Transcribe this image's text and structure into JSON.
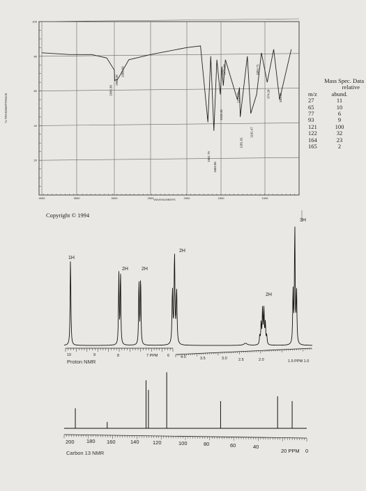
{
  "ir": {
    "ylabel": "% TRANSMITTANCE",
    "xlabel": "WAVENUMBERS",
    "yticks": [
      "100",
      "80",
      "60",
      "40",
      "20"
    ],
    "xticks": [
      "4000",
      "3500",
      "3000",
      "2500",
      "2000",
      "1500",
      "1000"
    ],
    "copyright": "Copyright © 1994",
    "peak_labels": [
      "2995.38",
      "2950.39",
      "2909.09",
      "1691.79",
      "1603.85",
      "1510.45",
      "1473.88",
      "1313.69",
      "1281.01",
      "1161.47",
      "1094.71",
      "974.18",
      "833.35"
    ]
  },
  "mass_spec": {
    "title": "Mass Spec. Data",
    "sub": "relative",
    "col1": "m/z",
    "col2": "abund.",
    "rows": [
      {
        "mz": "27",
        "abund": "11"
      },
      {
        "mz": "65",
        "abund": "10"
      },
      {
        "mz": "77",
        "abund": "6"
      },
      {
        "mz": "93",
        "abund": "9"
      },
      {
        "mz": "121",
        "abund": "100"
      },
      {
        "mz": "122",
        "abund": "32"
      },
      {
        "mz": "164",
        "abund": "23"
      },
      {
        "mz": "165",
        "abund": "2"
      }
    ]
  },
  "hnmr": {
    "label": "Proton NMR",
    "ppm_label": "PPM",
    "ticks": [
      "10",
      "9",
      "8",
      "7 PPM",
      "6",
      "4.0",
      "3.5",
      "3.0",
      "2.5",
      "2.0",
      "1.5 PPM 1.0"
    ],
    "integrals": [
      "1H",
      "2H",
      "2H",
      "2H",
      "2H",
      "3H"
    ]
  },
  "cnmr": {
    "label": "Carbon 13 NMR",
    "ticks": [
      "200",
      "180",
      "160",
      "140",
      "120",
      "100",
      "80",
      "60",
      "40",
      "20 PPM",
      "0"
    ]
  },
  "chart_data": [
    {
      "type": "line",
      "title": "",
      "xlabel": "WAVENUMBERS",
      "ylabel": "% TRANSMITTANCE",
      "xlim": [
        4000,
        600
      ],
      "ylim": [
        0,
        100
      ],
      "x": [
        4000,
        3600,
        3300,
        3100,
        3000,
        2995,
        2950,
        2909,
        2800,
        2500,
        2000,
        1800,
        1691.79,
        1650,
        1603.85,
        1560,
        1510.45,
        1490,
        1473.88,
        1450,
        1313.69,
        1290,
        1281.01,
        1200,
        1161.47,
        1094.71,
        1040,
        974.18,
        900,
        833.35,
        700
      ],
      "y": [
        82,
        81,
        81,
        79,
        72,
        66,
        67,
        70,
        78,
        81,
        85,
        86,
        42,
        80,
        37,
        78,
        58,
        74,
        63,
        78,
        55,
        62,
        45,
        80,
        47,
        58,
        82,
        65,
        84,
        55,
        84
      ],
      "annotations": [
        "2995.38",
        "2950.39",
        "2909.09",
        "1691.79",
        "1603.85",
        "1510.45",
        "1473.88",
        "1313.69",
        "1281.01",
        "1161.47",
        "1094.71",
        "974.18",
        "833.35"
      ]
    },
    {
      "type": "line",
      "title": "",
      "xlabel": "PPM",
      "peaks": [
        {
          "ppm": 9.88,
          "integral": "1H",
          "height": 0.7
        },
        {
          "ppm": 7.83,
          "integral": "2H",
          "height": 0.6
        },
        {
          "ppm": 6.99,
          "integral": "2H",
          "height": 0.56
        },
        {
          "ppm": 4.1,
          "integral": "2H",
          "height": 0.72
        },
        {
          "ppm": 1.85,
          "integral": "2H",
          "height": 0.28
        },
        {
          "ppm": 1.05,
          "integral": "3H",
          "height": 0.95
        }
      ]
    },
    {
      "type": "line",
      "title": "",
      "xlabel": "PPM",
      "xlim": [
        200,
        0
      ],
      "peaks": [
        {
          "ppm": 190.7,
          "height": 0.25
        },
        {
          "ppm": 164.2,
          "height": 0.08
        },
        {
          "ppm": 131.9,
          "height": 0.6
        },
        {
          "ppm": 129.9,
          "height": 0.48
        },
        {
          "ppm": 114.7,
          "height": 0.7
        },
        {
          "ppm": 69.9,
          "height": 0.34
        },
        {
          "ppm": 22.5,
          "height": 0.4
        },
        {
          "ppm": 10.4,
          "height": 0.34
        }
      ]
    }
  ]
}
